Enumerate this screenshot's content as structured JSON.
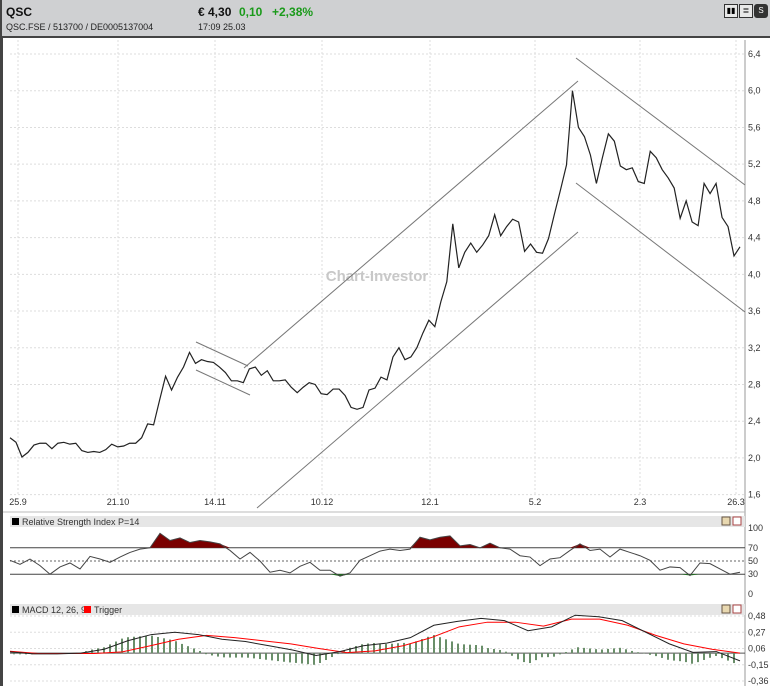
{
  "header": {
    "symbol": "QSC",
    "identifiers": "QSC.FSE  /  513700  /  DE0005137004",
    "price": "€ 4,30",
    "change": "0,10",
    "change_pct": "+2,38%",
    "time": "17:09  25.03",
    "icons": [
      "bar-chart-icon",
      "news-icon",
      "s-icon"
    ]
  },
  "colors": {
    "positive": "#1a9a1a",
    "price_line": "#222222",
    "trigger": "#ff0000",
    "rsi_overbought_fill": "#7a0000",
    "rsi_oversold_fill": "#1a7a1a",
    "histogram": "#6a8f6a"
  },
  "watermark": "Chart-Investor",
  "chart_data": [
    {
      "type": "line",
      "title": "",
      "ylim": [
        1.6,
        6.4
      ],
      "yticks": [
        "6,4",
        "6,0",
        "5,6",
        "5,2",
        "4,8",
        "4,4",
        "4,0",
        "3,6",
        "3,2",
        "2,8",
        "2,4",
        "2,0",
        "1,6"
      ],
      "xticks": [
        "25.9",
        "21.10",
        "14.11",
        "10.12",
        "12.1",
        "5.2",
        "2.3",
        "26.3"
      ],
      "grid": true,
      "values": [
        2.22,
        2.17,
        2.01,
        2.06,
        2.14,
        2.16,
        2.16,
        2.1,
        2.16,
        2.17,
        2.15,
        2.16,
        2.08,
        2.06,
        2.07,
        2.06,
        2.09,
        2.15,
        2.12,
        2.13,
        2.16,
        2.16,
        2.22,
        2.37,
        2.36,
        2.63,
        2.89,
        2.74,
        2.88,
        2.99,
        3.15,
        3.03,
        3.07,
        3.05,
        3.04,
        2.99,
        2.93,
        2.84,
        2.84,
        2.82,
        2.97,
        2.99,
        2.9,
        2.95,
        2.84,
        2.84,
        2.85,
        2.77,
        2.71,
        2.77,
        2.82,
        2.8,
        2.7,
        2.69,
        2.75,
        2.75,
        2.68,
        2.55,
        2.53,
        2.55,
        2.74,
        2.76,
        2.88,
        2.85,
        3.1,
        3.2,
        3.07,
        3.1,
        3.2,
        3.36,
        3.5,
        3.43,
        3.7,
        3.92,
        4.55,
        4.07,
        4.24,
        4.34,
        4.24,
        4.32,
        4.42,
        4.65,
        4.42,
        4.52,
        4.6,
        4.57,
        4.25,
        4.33,
        4.24,
        4.23,
        4.39,
        4.66,
        4.92,
        5.19,
        6.0,
        5.6,
        5.5,
        5.3,
        4.99,
        5.27,
        5.53,
        5.45,
        5.18,
        5.14,
        5.16,
        5.01,
        4.99,
        5.34,
        5.27,
        5.14,
        5.05,
        4.94,
        4.61,
        4.8,
        4.57,
        4.53,
        4.99,
        4.88,
        4.99,
        4.62,
        4.52,
        4.2,
        4.3
      ]
    },
    {
      "type": "line",
      "title": "Relative Strength Index P=14",
      "ylim": [
        0,
        100
      ],
      "yticks": [
        "100",
        "70",
        "50",
        "30",
        "0"
      ],
      "levels": [
        70,
        50,
        30
      ],
      "values": [
        51,
        45,
        53,
        43,
        30,
        41,
        47,
        38,
        57,
        53,
        48,
        56,
        63,
        68,
        70,
        92,
        81,
        85,
        78,
        81,
        79,
        76,
        66,
        53,
        63,
        50,
        33,
        36,
        32,
        42,
        48,
        36,
        36,
        27,
        32,
        51,
        58,
        65,
        68,
        66,
        68,
        86,
        82,
        86,
        88,
        73,
        75,
        70,
        77,
        70,
        68,
        58,
        56,
        43,
        53,
        55,
        66,
        76,
        66,
        68,
        56,
        68,
        63,
        58,
        51,
        36,
        41,
        40,
        28,
        47,
        46,
        38,
        30,
        33
      ]
    },
    {
      "type": "line",
      "title": "MACD 12, 26, 9",
      "legend": [
        "MACD 12, 26, 9",
        "Trigger"
      ],
      "ylim": [
        -0.36,
        0.48
      ],
      "yticks": [
        "0,48",
        "0,27",
        "0,06",
        "-0,15",
        "-0,36"
      ],
      "series": [
        {
          "name": "MACD 12, 26, 9",
          "values": [
            0.016,
            -0.01,
            -0.01,
            0.0,
            0.05,
            0.16,
            0.24,
            0.27,
            0.24,
            0.18,
            0.15,
            0.095,
            0.04,
            -0.03,
            0.02,
            0.095,
            0.13,
            0.2,
            0.36,
            0.41,
            0.45,
            0.42,
            0.29,
            0.34,
            0.49,
            0.47,
            0.42,
            0.27,
            0.12,
            0.01,
            0.02,
            -0.1
          ]
        },
        {
          "name": "Trigger",
          "values": [
            0.025,
            -0.005,
            -0.005,
            -0.005,
            0.016,
            0.095,
            0.18,
            0.23,
            0.2,
            0.16,
            0.12,
            0.06,
            0.007,
            0.03,
            0.095,
            0.2,
            0.34,
            0.4,
            0.4,
            0.35,
            0.44,
            0.44,
            0.36,
            0.23,
            0.12,
            0.05,
            0.0
          ]
        }
      ]
    }
  ]
}
